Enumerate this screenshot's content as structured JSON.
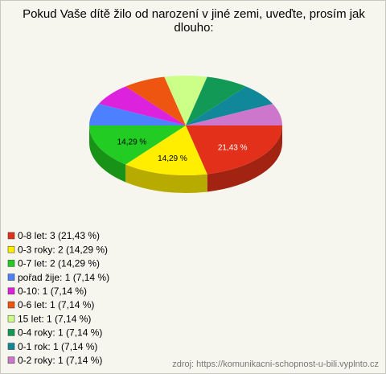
{
  "chart_data": {
    "type": "pie3d",
    "title": "Pokud Vaše dítě žilo od narození v jiné zemi, uveďte, prosím jak dlouho:",
    "categories": [
      "0-8 let",
      "0-3 roky",
      "0-7 let",
      "pořad žije",
      "0-10",
      "0-6 let",
      "15 let",
      "0-4 roky",
      "0-1 rok",
      "0-2 roky"
    ],
    "values": [
      3,
      2,
      2,
      1,
      1,
      1,
      1,
      1,
      1,
      1
    ],
    "value_labels": [
      "21,43 %",
      "14,29 %",
      "14,29 %",
      null,
      null,
      null,
      null,
      null,
      null,
      null
    ],
    "legend_labels": [
      "0-8 let: 3 (21,43 %)",
      "0-3 roky: 2 (14,29 %)",
      "0-7 let: 2 (14,29 %)",
      "pořad žije: 1 (7,14 %)",
      "0-10: 1 (7,14 %)",
      "0-6 let: 1 (7,14 %)",
      "15 let: 1 (7,14 %)",
      "0-4 roky: 1 (7,14 %)",
      "0-1 rok: 1 (7,14 %)",
      "0-2 roky: 1 (7,14 %)"
    ],
    "colors": [
      "#e2301a",
      "#ffee00",
      "#22cc22",
      "#4d80ff",
      "#dd22dd",
      "#ee5511",
      "#ccff88",
      "#119955",
      "#118899",
      "#cc77cc"
    ],
    "source": "zdroj: https://komunikacni-schopnost-u-bili.vyplnto.cz"
  }
}
